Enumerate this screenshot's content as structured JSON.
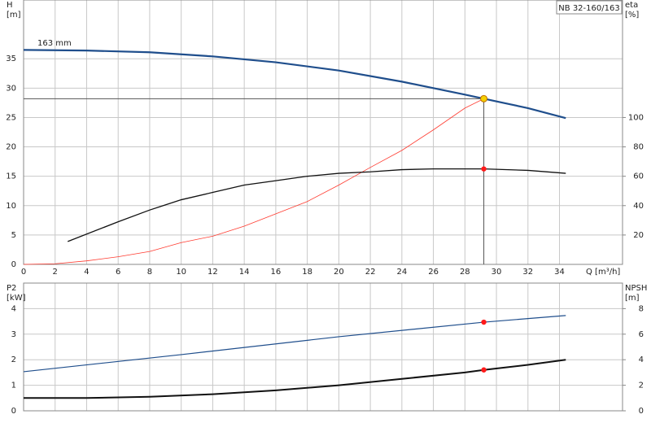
{
  "chart_data": [
    {
      "type": "line",
      "title": "NB 32-160/163",
      "annotation": "163 mm",
      "ylabel": "H",
      "yunit": "[m]",
      "y2label": "eta",
      "y2unit": "[%]",
      "xlabel": "Q [m³/h]",
      "xlim": [
        0,
        38
      ],
      "xticks": [
        0,
        2,
        4,
        6,
        8,
        10,
        12,
        14,
        16,
        18,
        20,
        22,
        24,
        26,
        28,
        30,
        32,
        34
      ],
      "ylim": [
        0,
        45
      ],
      "yticks": [
        0,
        5,
        10,
        15,
        20,
        25,
        30,
        35
      ],
      "y2lim": [
        0,
        180
      ],
      "y2ticks": [
        20,
        40,
        60,
        80,
        100
      ],
      "grid": true,
      "series": [
        {
          "color": "#1f4e8c",
          "width": 2.2,
          "axis": "y",
          "x": [
            0,
            4,
            8,
            12,
            16,
            20,
            24,
            28,
            29.2,
            32,
            34.4
          ],
          "values": [
            36.5,
            36.4,
            36.1,
            35.4,
            34.4,
            33.0,
            31.1,
            28.9,
            28.2,
            26.6,
            24.9
          ]
        },
        {
          "color": "#ff3b30",
          "width": 0.8,
          "axis": "y",
          "x": [
            0,
            2,
            4,
            6,
            8,
            10,
            12,
            14,
            16,
            18,
            20,
            22,
            24,
            26,
            28,
            29.2
          ],
          "values": [
            0,
            0.1,
            0.6,
            1.3,
            2.2,
            3.7,
            4.8,
            6.5,
            8.6,
            10.7,
            13.5,
            16.5,
            19.4,
            22.9,
            26.6,
            28.2
          ]
        },
        {
          "color": "#111111",
          "width": 1.3,
          "axis": "y2",
          "x": [
            2.8,
            6,
            8,
            10,
            12,
            14,
            16,
            18,
            20,
            22,
            24,
            26,
            28,
            29.2,
            32,
            34.4
          ],
          "values": [
            15.6,
            29,
            37,
            44,
            49,
            54,
            57,
            60,
            62,
            63,
            64.5,
            65,
            65,
            65,
            64,
            62
          ]
        }
      ],
      "markers": [
        {
          "x": 29.2,
          "y": 28.2,
          "axis": "y",
          "color": "#f5d000",
          "crosshair": true
        },
        {
          "x": 29.2,
          "y": 65,
          "axis": "y2",
          "color": "#ff1a1a"
        }
      ]
    },
    {
      "type": "line",
      "ylabel": "P2",
      "yunit": "[kW]",
      "y2label": "NPSH",
      "y2unit": "[m]",
      "xlim": [
        0,
        38
      ],
      "ylim": [
        0,
        5
      ],
      "yticks": [
        0,
        1,
        2,
        3,
        4
      ],
      "y2lim": [
        0,
        10
      ],
      "y2ticks": [
        0,
        2,
        4,
        6,
        8
      ],
      "grid": true,
      "series": [
        {
          "color": "#1f4e8c",
          "width": 1.2,
          "axis": "y",
          "x": [
            0,
            10,
            20,
            29.2,
            34.4
          ],
          "values": [
            1.53,
            2.2,
            2.9,
            3.47,
            3.73
          ]
        },
        {
          "color": "#111111",
          "width": 2,
          "axis": "y2",
          "x": [
            0,
            4,
            8,
            12,
            16,
            20,
            24,
            28,
            29.2,
            32,
            34.4
          ],
          "values": [
            1.0,
            1.0,
            1.1,
            1.3,
            1.6,
            2.0,
            2.5,
            3.0,
            3.2,
            3.6,
            4.0
          ]
        }
      ],
      "markers": [
        {
          "x": 29.2,
          "y": 3.47,
          "axis": "y",
          "color": "#ff1a1a"
        },
        {
          "x": 29.2,
          "y": 3.2,
          "axis": "y2",
          "color": "#ff1a1a"
        }
      ]
    }
  ]
}
